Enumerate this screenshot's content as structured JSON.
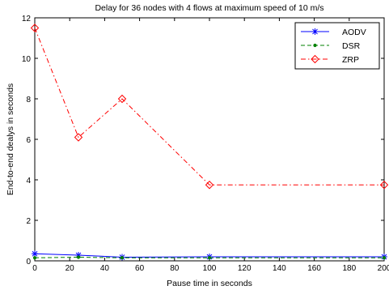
{
  "chart_data": {
    "type": "line",
    "title": "Delay for 36 nodes with 4 flows at maximum speed of 10 m/s",
    "xlabel": "Pause time in seconds",
    "ylabel": "End-to-end dealys in seconds",
    "xlim": [
      0,
      200
    ],
    "ylim": [
      0,
      12
    ],
    "xticks": [
      0,
      20,
      40,
      60,
      80,
      100,
      120,
      140,
      160,
      180,
      200
    ],
    "yticks": [
      0,
      2,
      4,
      6,
      8,
      10,
      12
    ],
    "grid": false,
    "legend_position": "top-right",
    "x": [
      0,
      25,
      50,
      100,
      200
    ],
    "series": [
      {
        "name": "AODV",
        "values": [
          0.35,
          0.28,
          0.18,
          0.2,
          0.2
        ],
        "color": "#0000ff",
        "line_style": "solid",
        "marker": "asterisk"
      },
      {
        "name": "DSR",
        "values": [
          0.15,
          0.18,
          0.15,
          0.15,
          0.15
        ],
        "color": "#008000",
        "line_style": "dashed",
        "marker": "point"
      },
      {
        "name": "ZRP",
        "values": [
          11.5,
          6.1,
          8.0,
          3.75,
          3.75
        ],
        "color": "#ff0000",
        "line_style": "dash-dot",
        "marker": "diamond"
      }
    ]
  }
}
